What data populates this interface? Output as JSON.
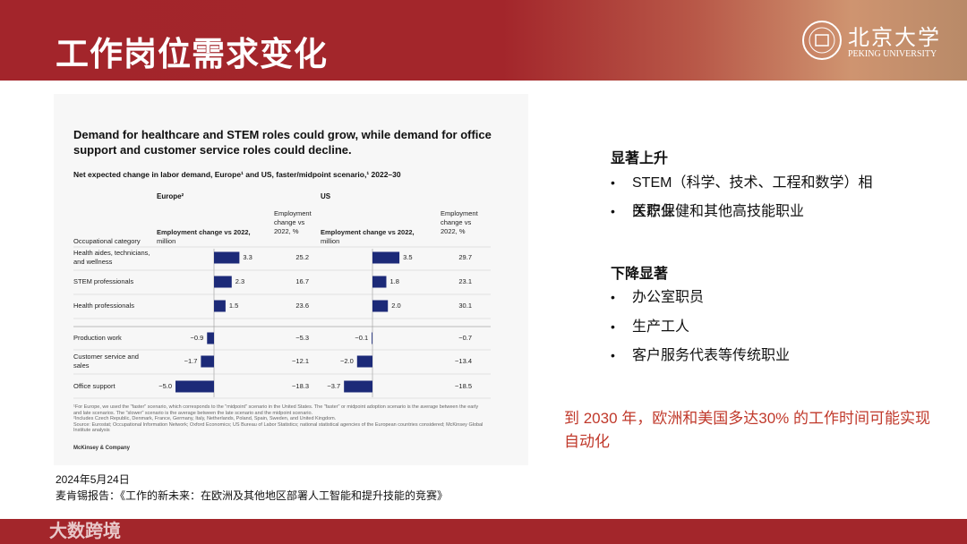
{
  "header": {
    "title": "工作岗位需求变化",
    "logo_cn": "北京大学",
    "logo_en": "PEKING UNIVERSITY"
  },
  "chart_data": {
    "type": "diverging-bar",
    "title": "Demand for healthcare and STEM roles could grow, while demand for office support and customer service roles could decline.",
    "subtitle": "Net expected change in labor demand, Europe¹ and US, faster/midpoint scenario,¹ 2022–30",
    "category_header": "Occupational category",
    "categories": [
      "Health aides, technicians, and wellness",
      "STEM professionals",
      "Health professionals",
      "Production work",
      "Customer service and sales",
      "Office support"
    ],
    "bar_header": "Employment change vs 2022,",
    "bar_unit": "million",
    "pct_header": "Employment change vs 2022, %",
    "color": "#1c2a78",
    "series": [
      {
        "name": "Europe²",
        "values": [
          3.3,
          2.3,
          1.5,
          -0.9,
          -1.7,
          -5.0
        ],
        "value_labels": [
          "3.3",
          "2.3",
          "1.5",
          "−0.9",
          "−1.7",
          "−5.0"
        ],
        "pct": [
          25.2,
          16.7,
          23.6,
          -5.3,
          -12.1,
          -18.3
        ],
        "pct_labels": [
          "25.2",
          "16.7",
          "23.6",
          "−5.3",
          "−12.1",
          "−18.3"
        ]
      },
      {
        "name": "US",
        "values": [
          3.5,
          1.8,
          2.0,
          -0.1,
          -2.0,
          -3.7
        ],
        "value_labels": [
          "3.5",
          "1.8",
          "2.0",
          "−0.1",
          "−2.0",
          "−3.7"
        ],
        "pct": [
          29.7,
          23.1,
          30.1,
          -0.7,
          -13.4,
          -18.5
        ],
        "pct_labels": [
          "29.7",
          "23.1",
          "30.1",
          "−0.7",
          "−13.4",
          "−18.5"
        ]
      }
    ],
    "footnotes": [
      "¹For Europe, we used the \"faster\" scenario, which corresponds to the \"midpoint\" scenario in the United States. The \"faster\" or midpoint adoption scenario is the average between the early and late scenarios. The \"slower\" scenario is the average between the late scenario and the midpoint scenario.",
      "²Includes Czech Republic, Denmark, France, Germany, Italy, Netherlands, Poland, Spain, Sweden, and United Kingdom.",
      "Source: Eurostat; Occupational Information Network; Oxford Economics; US Bureau of Labor Statistics; national statistical agencies of the European countries considered; McKinsey Global Institute analysis"
    ],
    "brand": "McKinsey & Company"
  },
  "summary": {
    "up_title": "显著上升",
    "up_items": [
      "STEM（科学、技术、工程和数学）相关职业",
      "医疗保健和其他高技能职业"
    ],
    "down_title": "下降显著",
    "down_items": [
      "办公室职员",
      "生产工人",
      "客户服务代表等传统职业"
    ],
    "highlight": "到 2030 年，欧洲和美国多达30% 的工作时间可能实现自动化"
  },
  "source": {
    "date": "2024年5月24日",
    "citation": "麦肯锡报告：《工作的新未来：在欧洲及其他地区部署人工智能和提升技能的竞赛》"
  },
  "watermark": "大数跨境"
}
